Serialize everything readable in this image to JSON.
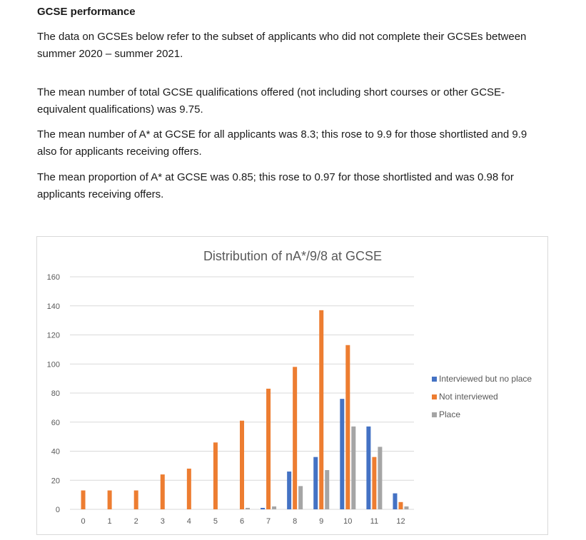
{
  "document": {
    "heading": "GCSE performance",
    "paragraphs": [
      "The data on GCSEs below refer to the subset of applicants who did not complete their GCSEs between summer 2020 – summer 2021.",
      "The mean number of total GCSE qualifications offered (not including short courses or other GCSE-equivalent qualifications) was 9.75.",
      "The mean number of A* at GCSE for all applicants was 8.3; this rose to 9.9 for those shortlisted and 9.9 also for applicants receiving offers.",
      "The mean proportion of A* at GCSE was 0.85; this rose to 0.97 for those shortlisted and was 0.98 for applicants receiving offers."
    ]
  },
  "chart_data": {
    "type": "bar",
    "title": "Distribution of nA*/9/8 at GCSE",
    "xlabel": "",
    "ylabel": "",
    "categories": [
      "0",
      "1",
      "2",
      "3",
      "4",
      "5",
      "6",
      "7",
      "8",
      "9",
      "10",
      "11",
      "12"
    ],
    "ylim": [
      0,
      160
    ],
    "yticks": [
      0,
      20,
      40,
      60,
      80,
      100,
      120,
      140,
      160
    ],
    "grid": true,
    "legend_position": "right",
    "series": [
      {
        "name": "Interviewed but no place",
        "color": "#4472c4",
        "values": [
          0,
          0,
          0,
          0,
          0,
          0,
          0,
          1,
          26,
          36,
          76,
          57,
          11
        ]
      },
      {
        "name": "Not interviewed",
        "color": "#ed7d31",
        "values": [
          13,
          13,
          13,
          24,
          28,
          46,
          61,
          83,
          98,
          137,
          113,
          36,
          5
        ]
      },
      {
        "name": "Place",
        "color": "#a5a5a5",
        "values": [
          0,
          0,
          0,
          0,
          0,
          0,
          1,
          2,
          16,
          27,
          57,
          43,
          2
        ]
      }
    ]
  }
}
